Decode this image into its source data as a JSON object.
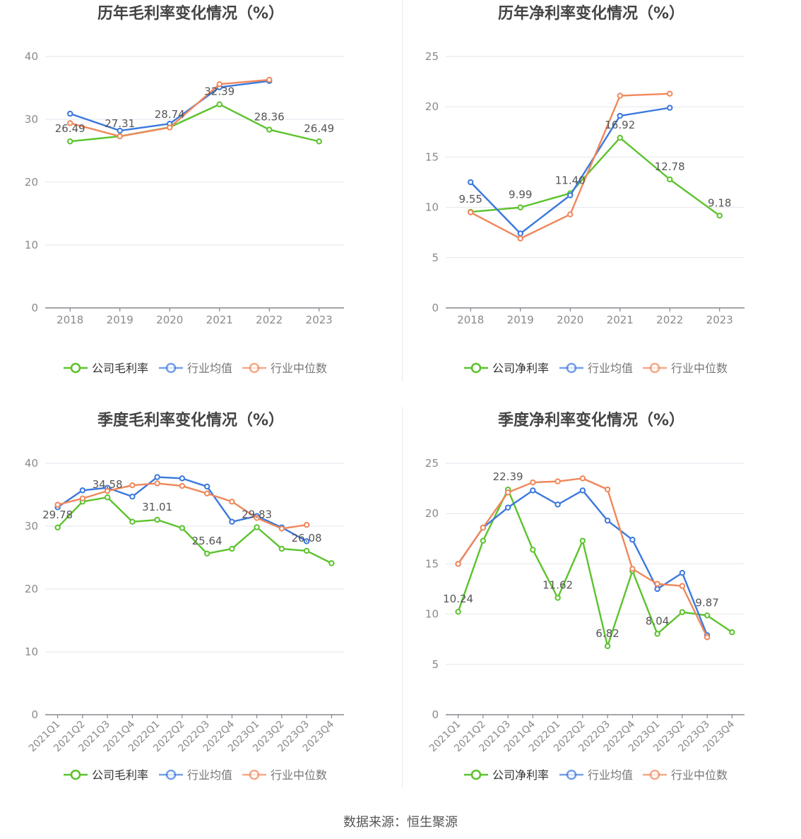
{
  "colors": {
    "company": "#5bc32c",
    "avg": "#3b78dd",
    "median": "#f0875a",
    "grid": "#e3e6ef",
    "axis": "#6e7079",
    "tick": "#8a8a8a",
    "label": "#555555",
    "title": "#444444"
  },
  "source": "数据来源：恒生聚源",
  "chart_data": [
    {
      "type": "line",
      "title": "历年毛利率变化情况（%）",
      "categories": [
        "2018",
        "2019",
        "2020",
        "2021",
        "2022",
        "2023"
      ],
      "ylim": [
        0,
        40
      ],
      "yticks": [
        "0",
        "10",
        "20",
        "30",
        "40"
      ],
      "series": [
        {
          "name": "公司毛利率",
          "values": [
            26.49,
            27.31,
            28.74,
            32.39,
            28.36,
            26.49
          ],
          "labels": [
            "26.49",
            "27.31",
            "28.74",
            "32.39",
            "28.36",
            "26.49"
          ]
        },
        {
          "name": "行业均值",
          "values": [
            30.9,
            28.2,
            29.3,
            35.1,
            36.1,
            null
          ]
        },
        {
          "name": "行业中位数",
          "values": [
            29.4,
            27.3,
            28.7,
            35.6,
            36.3,
            null
          ]
        }
      ],
      "legend": "bottom"
    },
    {
      "type": "line",
      "title": "历年净利率变化情况（%）",
      "categories": [
        "2018",
        "2019",
        "2020",
        "2021",
        "2022",
        "2023"
      ],
      "ylim": [
        0,
        25
      ],
      "yticks": [
        "0",
        "5",
        "10",
        "15",
        "20",
        "25"
      ],
      "series": [
        {
          "name": "公司净利率",
          "values": [
            9.55,
            9.99,
            11.4,
            16.92,
            12.78,
            9.18
          ],
          "labels": [
            "9.55",
            "9.99",
            "11.40",
            "16.92",
            "12.78",
            "9.18"
          ]
        },
        {
          "name": "行业均值",
          "values": [
            12.5,
            7.4,
            11.2,
            19.1,
            19.9,
            null
          ]
        },
        {
          "name": "行业中位数",
          "values": [
            9.5,
            6.9,
            9.3,
            21.1,
            21.3,
            null
          ]
        }
      ],
      "legend": "bottom"
    },
    {
      "type": "line",
      "title": "季度毛利率变化情况（%）",
      "categories": [
        "2021Q1",
        "2021Q2",
        "2021Q3",
        "2021Q4",
        "2022Q1",
        "2022Q2",
        "2022Q3",
        "2022Q4",
        "2023Q1",
        "2023Q2",
        "2023Q3",
        "2023Q4"
      ],
      "ylim": [
        0,
        40
      ],
      "yticks": [
        "0",
        "10",
        "20",
        "30",
        "40"
      ],
      "series": [
        {
          "name": "公司毛利率",
          "values": [
            29.78,
            33.9,
            34.58,
            30.7,
            31.01,
            29.7,
            25.64,
            26.4,
            29.83,
            26.4,
            26.08,
            24.1
          ],
          "labels": [
            "29.78",
            "",
            "34.58",
            "",
            "31.01",
            "",
            "25.64",
            "",
            "29.83",
            "",
            "26.08",
            ""
          ]
        },
        {
          "name": "行业均值",
          "values": [
            33.0,
            35.7,
            36.1,
            34.7,
            37.8,
            37.6,
            36.3,
            30.7,
            31.6,
            29.8,
            27.6,
            null
          ]
        },
        {
          "name": "行业中位数",
          "values": [
            33.4,
            34.4,
            35.6,
            36.5,
            36.8,
            36.4,
            35.2,
            33.9,
            31.3,
            29.6,
            30.2,
            null
          ]
        }
      ],
      "legend": "bottom"
    },
    {
      "type": "line",
      "title": "季度净利率变化情况（%）",
      "categories": [
        "2021Q1",
        "2021Q2",
        "2021Q3",
        "2021Q4",
        "2022Q1",
        "2022Q2",
        "2022Q3",
        "2022Q4",
        "2023Q1",
        "2023Q2",
        "2023Q3",
        "2023Q4"
      ],
      "ylim": [
        0,
        25
      ],
      "yticks": [
        "0",
        "5",
        "10",
        "15",
        "20",
        "25"
      ],
      "series": [
        {
          "name": "公司净利率",
          "values": [
            10.24,
            17.3,
            22.39,
            16.4,
            11.62,
            17.3,
            6.82,
            14.3,
            8.04,
            10.2,
            9.87,
            8.2
          ],
          "labels": [
            "10.24",
            "",
            "22.39",
            "",
            "11.62",
            "",
            "6.82",
            "",
            "8.04",
            "",
            "9.87",
            ""
          ]
        },
        {
          "name": "行业均值",
          "values": [
            15.0,
            18.6,
            20.6,
            22.3,
            20.9,
            22.3,
            19.3,
            17.4,
            12.5,
            14.1,
            7.9,
            null
          ]
        },
        {
          "name": "行业中位数",
          "values": [
            15.0,
            18.6,
            22.1,
            23.1,
            23.2,
            23.5,
            22.4,
            14.5,
            13.0,
            12.8,
            7.7,
            null
          ]
        }
      ],
      "legend": "bottom"
    }
  ]
}
